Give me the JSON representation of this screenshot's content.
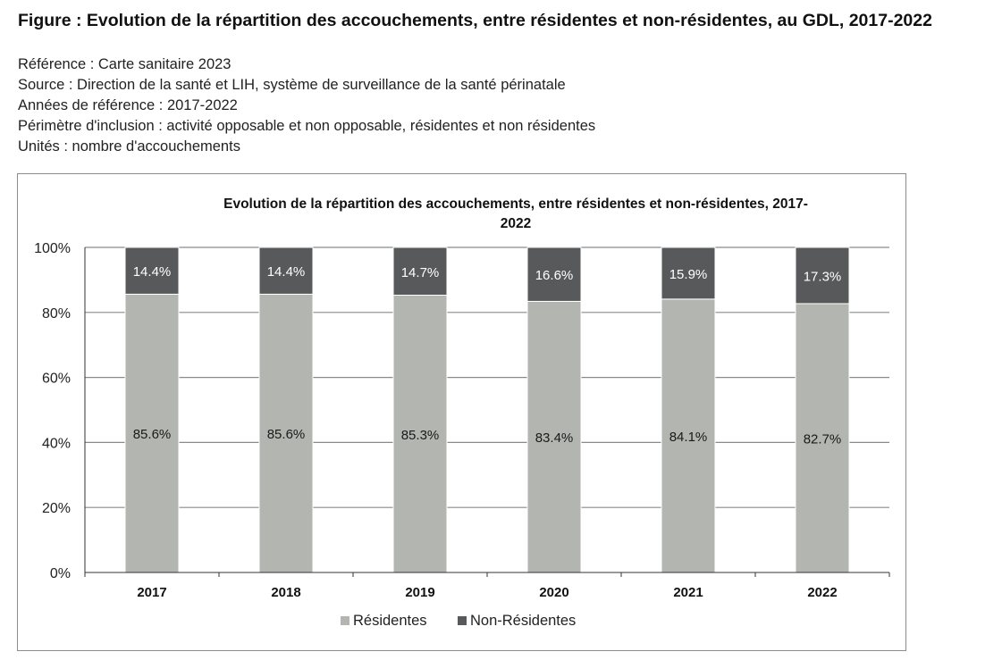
{
  "figure": {
    "title": "Figure : Evolution de la répartition des accouchements, entre résidentes et non-résidentes, au GDL, 2017-2022",
    "meta": [
      "Référence : Carte sanitaire 2023",
      "Source : Direction de la santé et LIH, système de surveillance de la santé périnatale",
      "Années de référence : 2017-2022",
      "Périmètre d'inclusion : activité opposable et non opposable, résidentes et non résidentes",
      "Unités : nombre d'accouchements"
    ]
  },
  "chart_data": {
    "type": "bar",
    "stacked": true,
    "percent": true,
    "title_lines": [
      "Evolution de la répartition des accouchements, entre résidentes et non-résidentes, 2017-",
      "2022"
    ],
    "categories": [
      "2017",
      "2018",
      "2019",
      "2020",
      "2021",
      "2022"
    ],
    "series": [
      {
        "name": "Résidentes",
        "color": "#b3b5b1",
        "values": [
          85.6,
          85.6,
          85.3,
          83.4,
          84.1,
          82.7
        ],
        "labels": [
          "85.6%",
          "85.6%",
          "85.3%",
          "83.4%",
          "84.1%",
          "82.7%"
        ]
      },
      {
        "name": "Non-Résidentes",
        "color": "#58595b",
        "values": [
          14.4,
          14.4,
          14.7,
          16.6,
          15.9,
          17.3
        ],
        "labels": [
          "14.4%",
          "14.4%",
          "14.7%",
          "16.6%",
          "15.9%",
          "17.3%"
        ]
      }
    ],
    "ylim": [
      0,
      100
    ],
    "yticks": [
      0,
      20,
      40,
      60,
      80,
      100
    ],
    "ytick_labels": [
      "0%",
      "20%",
      "40%",
      "60%",
      "80%",
      "100%"
    ],
    "grid": true,
    "legend": "bottom-center"
  }
}
